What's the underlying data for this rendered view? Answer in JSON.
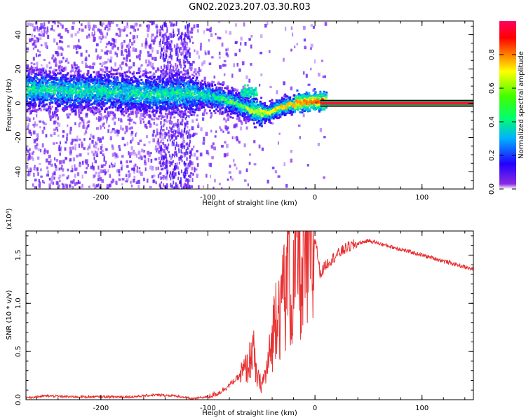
{
  "title": "GN02.2023.207.03.30.R03",
  "colorbar": {
    "label": "Normalized spectral amplitude",
    "ticks": [
      "0.0",
      "0.2",
      "0.4",
      "0.6",
      "0.8"
    ],
    "colors": [
      "#ffffff",
      "#7f00ff",
      "#0000ff",
      "#00ffff",
      "#00ff00",
      "#ffff00",
      "#ff7f00",
      "#ff0000",
      "#ff0080"
    ]
  },
  "chart_data": [
    {
      "type": "heatmap",
      "xlabel": "Height of straight line (km)",
      "ylabel": "Frequency (Hz)",
      "xlim": [
        -270,
        148
      ],
      "ylim": [
        -50,
        48
      ],
      "x_ticks": [
        -200,
        -100,
        0,
        100
      ],
      "x_tick_labels": [
        "-200",
        "-100",
        "0",
        "100"
      ],
      "y_ticks": [
        -40,
        -20,
        0,
        20,
        40
      ],
      "y_tick_labels": [
        "-40",
        "-20",
        "0",
        "20",
        "40"
      ],
      "colorbar_range": [
        0,
        1
      ],
      "ridge": [
        {
          "x": -260,
          "freq": 8
        },
        {
          "x": -230,
          "freq": 7
        },
        {
          "x": -200,
          "freq": 7
        },
        {
          "x": -170,
          "freq": 6
        },
        {
          "x": -150,
          "freq": 5
        },
        {
          "x": -130,
          "freq": 6
        },
        {
          "x": -110,
          "freq": 5
        },
        {
          "x": -90,
          "freq": 3
        },
        {
          "x": -75,
          "freq": 0
        },
        {
          "x": -60,
          "freq": -4
        },
        {
          "x": -45,
          "freq": -6
        },
        {
          "x": -35,
          "freq": -3
        },
        {
          "x": -25,
          "freq": -1
        },
        {
          "x": -10,
          "freq": 1
        },
        {
          "x": 0,
          "freq": 1
        },
        {
          "x": 148,
          "freq": 0
        }
      ]
    },
    {
      "type": "line",
      "xlabel": "Height of straight line (km)",
      "ylabel": "SNR (10 * v/v)",
      "y_exponent": "(x10⁴)",
      "xlim": [
        -270,
        148
      ],
      "ylim": [
        0,
        1.75
      ],
      "x_ticks": [
        -200,
        -100,
        0,
        100
      ],
      "x_tick_labels": [
        "-200",
        "-100",
        "0",
        "100"
      ],
      "y_ticks": [
        0,
        0.5,
        1.0,
        1.5
      ],
      "y_tick_labels": [
        "0.0",
        "0.5",
        "1.0",
        "1.5"
      ],
      "series": [
        {
          "color": "#e83030",
          "x": [
            -270,
            -250,
            -230,
            -210,
            -190,
            -170,
            -150,
            -130,
            -115,
            -100,
            -90,
            -80,
            -70,
            -62,
            -58,
            -55,
            -50,
            -45,
            -40,
            -37,
            -35,
            -32,
            -30,
            -27,
            -25,
            -22,
            -20,
            -17,
            -15,
            -12,
            -10,
            -8,
            -5,
            -2,
            0,
            5,
            10,
            20,
            30,
            40,
            50,
            60,
            80,
            100,
            120,
            148
          ],
          "y": [
            0.02,
            0.04,
            0.03,
            0.03,
            0.03,
            0.03,
            0.05,
            0.04,
            0.01,
            0.03,
            0.07,
            0.15,
            0.25,
            0.35,
            0.55,
            0.25,
            0.15,
            0.3,
            0.6,
            0.9,
            1.1,
            0.8,
            1.3,
            1.0,
            1.55,
            0.9,
            1.2,
            1.45,
            1.6,
            1.0,
            1.55,
            1.2,
            1.62,
            1.3,
            1.7,
            1.3,
            1.4,
            1.5,
            1.58,
            1.62,
            1.65,
            1.62,
            1.56,
            1.5,
            1.44,
            1.35
          ]
        }
      ]
    }
  ]
}
